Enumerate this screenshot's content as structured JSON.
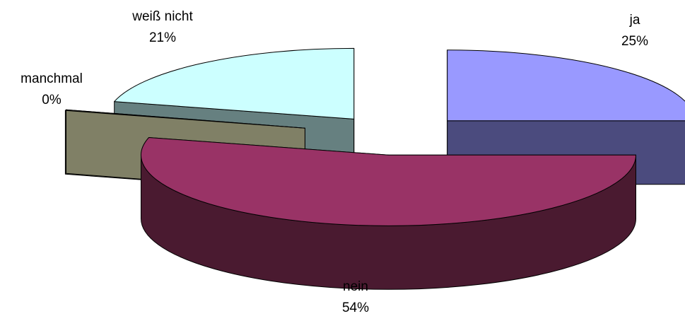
{
  "chart_data": {
    "type": "pie",
    "three_d": true,
    "exploded": true,
    "slices": [
      {
        "name": "ja",
        "value": 25,
        "percent_label": "25%",
        "color": "#9999ff",
        "side_color": "#4b4b7e"
      },
      {
        "name": "nein",
        "value": 54,
        "percent_label": "54%",
        "color": "#993366",
        "side_color": "#4a1a30"
      },
      {
        "name": "manchmal",
        "value": 0,
        "percent_label": "0%",
        "color": "#ffffcc",
        "side_color": "#808066"
      },
      {
        "name": "weiß nicht",
        "value": 21,
        "percent_label": "21%",
        "color": "#ccffff",
        "side_color": "#668080"
      }
    ],
    "legend": "none",
    "data_labels": "category name and percentage"
  }
}
